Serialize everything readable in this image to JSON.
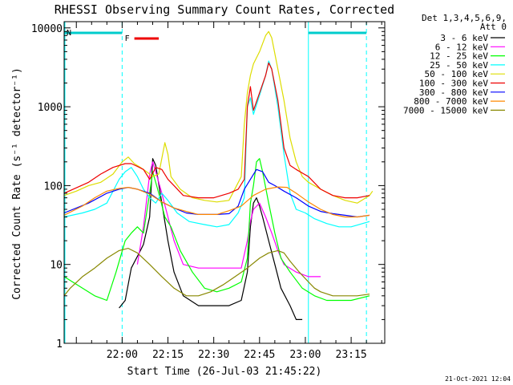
{
  "chart_data": {
    "type": "line",
    "title": "RHESSI Observing Summary Count Rates, Corrected",
    "xlabel": "Start Time (26-Jul-03 21:45:22)",
    "ylabel": "Corrected Count Rate (s⁻¹ detector⁻¹)",
    "yscale": "log",
    "ylim": [
      1,
      12000
    ],
    "xlim_minutes": [
      -4,
      101
    ],
    "y_ticks": [
      {
        "v": 1,
        "label": "1"
      },
      {
        "v": 10,
        "label": "10"
      },
      {
        "v": 100,
        "label": "100"
      },
      {
        "v": 1000,
        "label": "1000"
      },
      {
        "v": 10000,
        "label": "10000"
      }
    ],
    "x_ticks": [
      {
        "t": 15,
        "label": "22:00"
      },
      {
        "t": 30,
        "label": "22:15"
      },
      {
        "t": 45,
        "label": "22:30"
      },
      {
        "t": 60,
        "label": "22:45"
      },
      {
        "t": 75,
        "label": "23:00"
      },
      {
        "t": 90,
        "label": "23:15"
      }
    ],
    "legend_header": [
      "Det 1,3,4,5,6,9,",
      "Att 0"
    ],
    "series": [
      {
        "name": "3 - 6 keV",
        "color": "#000000",
        "points": [
          [
            -4,
            null
          ],
          [
            14,
            2.8
          ],
          [
            16,
            3.5
          ],
          [
            18,
            9
          ],
          [
            21,
            15
          ],
          [
            22,
            18
          ],
          [
            24,
            40
          ],
          [
            25,
            220
          ],
          [
            26,
            180
          ],
          [
            28,
            60
          ],
          [
            30,
            20
          ],
          [
            32,
            8
          ],
          [
            35,
            4
          ],
          [
            40,
            3
          ],
          [
            45,
            3
          ],
          [
            50,
            3
          ],
          [
            54,
            3.5
          ],
          [
            56,
            8
          ],
          [
            57,
            30
          ],
          [
            58,
            60
          ],
          [
            59,
            70
          ],
          [
            60,
            55
          ],
          [
            61,
            40
          ],
          [
            63,
            20
          ],
          [
            65,
            10
          ],
          [
            67,
            5
          ],
          [
            70,
            3
          ],
          [
            72,
            2
          ],
          [
            74,
            2
          ],
          [
            75,
            null
          ]
        ]
      },
      {
        "name": "6 - 12 keV",
        "color": "#ff00ff",
        "points": [
          [
            14,
            null
          ],
          [
            20,
            10
          ],
          [
            22,
            30
          ],
          [
            24,
            140
          ],
          [
            25,
            200
          ],
          [
            26,
            150
          ],
          [
            28,
            80
          ],
          [
            30,
            40
          ],
          [
            32,
            20
          ],
          [
            35,
            10
          ],
          [
            40,
            9
          ],
          [
            45,
            9
          ],
          [
            50,
            9
          ],
          [
            54,
            9
          ],
          [
            56,
            20
          ],
          [
            57,
            35
          ],
          [
            58,
            50
          ],
          [
            60,
            60
          ],
          [
            62,
            40
          ],
          [
            64,
            25
          ],
          [
            66,
            15
          ],
          [
            68,
            10
          ],
          [
            72,
            8
          ],
          [
            76,
            7
          ],
          [
            80,
            7
          ]
        ]
      },
      {
        "name": "12 - 25 keV",
        "color": "#00ff00",
        "points": [
          [
            -4,
            7
          ],
          [
            2,
            5
          ],
          [
            6,
            4
          ],
          [
            10,
            3.5
          ],
          [
            13,
            8
          ],
          [
            16,
            20
          ],
          [
            18,
            25
          ],
          [
            20,
            30
          ],
          [
            22,
            25
          ],
          [
            24,
            80
          ],
          [
            25,
            150
          ],
          [
            27,
            80
          ],
          [
            29,
            40
          ],
          [
            31,
            30
          ],
          [
            34,
            15
          ],
          [
            38,
            8
          ],
          [
            42,
            5
          ],
          [
            46,
            4.5
          ],
          [
            50,
            5
          ],
          [
            54,
            6
          ],
          [
            56,
            12
          ],
          [
            57,
            60
          ],
          [
            58,
            100
          ],
          [
            59,
            200
          ],
          [
            60,
            220
          ],
          [
            61,
            150
          ],
          [
            63,
            60
          ],
          [
            65,
            25
          ],
          [
            67,
            12
          ],
          [
            70,
            8
          ],
          [
            74,
            5
          ],
          [
            78,
            4
          ],
          [
            82,
            3.5
          ],
          [
            86,
            3.5
          ],
          [
            90,
            3.5
          ],
          [
            96,
            4
          ]
        ]
      },
      {
        "name": "25 - 50 keV",
        "color": "#00ffff",
        "points": [
          [
            -4,
            40
          ],
          [
            2,
            45
          ],
          [
            6,
            50
          ],
          [
            10,
            60
          ],
          [
            14,
            120
          ],
          [
            16,
            150
          ],
          [
            18,
            170
          ],
          [
            20,
            130
          ],
          [
            22,
            90
          ],
          [
            24,
            70
          ],
          [
            26,
            60
          ],
          [
            28,
            80
          ],
          [
            30,
            65
          ],
          [
            33,
            45
          ],
          [
            37,
            35
          ],
          [
            42,
            32
          ],
          [
            46,
            30
          ],
          [
            50,
            32
          ],
          [
            53,
            45
          ],
          [
            55,
            70
          ],
          [
            56,
            1000
          ],
          [
            57,
            1300
          ],
          [
            58,
            800
          ],
          [
            60,
            1400
          ],
          [
            62,
            2500
          ],
          [
            63,
            3800
          ],
          [
            64,
            3000
          ],
          [
            66,
            1000
          ],
          [
            68,
            250
          ],
          [
            70,
            80
          ],
          [
            72,
            50
          ],
          [
            75,
            45
          ],
          [
            78,
            38
          ],
          [
            82,
            33
          ],
          [
            86,
            30
          ],
          [
            90,
            30
          ],
          [
            96,
            35
          ]
        ]
      },
      {
        "name": "50 - 100 keV",
        "color": "#dddd00",
        "points": [
          [
            -4,
            75
          ],
          [
            0,
            85
          ],
          [
            4,
            100
          ],
          [
            8,
            110
          ],
          [
            12,
            140
          ],
          [
            15,
            200
          ],
          [
            17,
            230
          ],
          [
            19,
            190
          ],
          [
            21,
            170
          ],
          [
            23,
            150
          ],
          [
            25,
            130
          ],
          [
            27,
            140
          ],
          [
            29,
            350
          ],
          [
            30,
            250
          ],
          [
            31,
            130
          ],
          [
            34,
            90
          ],
          [
            38,
            70
          ],
          [
            42,
            65
          ],
          [
            46,
            62
          ],
          [
            50,
            65
          ],
          [
            54,
            130
          ],
          [
            55,
            600
          ],
          [
            56,
            1500
          ],
          [
            57,
            2500
          ],
          [
            58,
            3500
          ],
          [
            60,
            5000
          ],
          [
            62,
            8000
          ],
          [
            63,
            9000
          ],
          [
            64,
            7500
          ],
          [
            66,
            3000
          ],
          [
            68,
            1200
          ],
          [
            70,
            400
          ],
          [
            72,
            200
          ],
          [
            74,
            130
          ],
          [
            76,
            110
          ],
          [
            80,
            90
          ],
          [
            84,
            75
          ],
          [
            88,
            65
          ],
          [
            92,
            60
          ],
          [
            96,
            75
          ],
          [
            97,
            85
          ]
        ]
      },
      {
        "name": "100 - 300 keV",
        "color": "#ee0000",
        "points": [
          [
            -4,
            80
          ],
          [
            4,
            110
          ],
          [
            8,
            140
          ],
          [
            12,
            170
          ],
          [
            16,
            190
          ],
          [
            18,
            190
          ],
          [
            20,
            175
          ],
          [
            22,
            160
          ],
          [
            24,
            120
          ],
          [
            26,
            170
          ],
          [
            28,
            160
          ],
          [
            30,
            120
          ],
          [
            32,
            100
          ],
          [
            35,
            75
          ],
          [
            40,
            70
          ],
          [
            45,
            70
          ],
          [
            50,
            80
          ],
          [
            53,
            90
          ],
          [
            55,
            120
          ],
          [
            56,
            1000
          ],
          [
            57,
            1800
          ],
          [
            58,
            900
          ],
          [
            60,
            1500
          ],
          [
            62,
            2500
          ],
          [
            63,
            3600
          ],
          [
            64,
            3000
          ],
          [
            66,
            1200
          ],
          [
            68,
            300
          ],
          [
            70,
            180
          ],
          [
            72,
            160
          ],
          [
            76,
            130
          ],
          [
            80,
            90
          ],
          [
            84,
            75
          ],
          [
            88,
            70
          ],
          [
            92,
            70
          ],
          [
            96,
            75
          ]
        ]
      },
      {
        "name": "300 - 800 keV",
        "color": "#0000ff",
        "points": [
          [
            -4,
            45
          ],
          [
            4,
            60
          ],
          [
            10,
            80
          ],
          [
            14,
            90
          ],
          [
            17,
            95
          ],
          [
            20,
            90
          ],
          [
            24,
            80
          ],
          [
            28,
            62
          ],
          [
            32,
            52
          ],
          [
            36,
            45
          ],
          [
            40,
            43
          ],
          [
            46,
            43
          ],
          [
            50,
            44
          ],
          [
            53,
            55
          ],
          [
            55,
            90
          ],
          [
            57,
            120
          ],
          [
            59,
            160
          ],
          [
            61,
            150
          ],
          [
            63,
            110
          ],
          [
            65,
            100
          ],
          [
            68,
            85
          ],
          [
            72,
            70
          ],
          [
            76,
            55
          ],
          [
            80,
            47
          ],
          [
            84,
            44
          ],
          [
            88,
            42
          ],
          [
            92,
            40
          ],
          [
            96,
            42
          ]
        ]
      },
      {
        "name": "800 - 7000 keV",
        "color": "#ff8800",
        "points": [
          [
            -4,
            42
          ],
          [
            2,
            55
          ],
          [
            6,
            70
          ],
          [
            10,
            85
          ],
          [
            14,
            92
          ],
          [
            17,
            95
          ],
          [
            20,
            90
          ],
          [
            24,
            78
          ],
          [
            28,
            62
          ],
          [
            32,
            52
          ],
          [
            36,
            47
          ],
          [
            40,
            43
          ],
          [
            46,
            43
          ],
          [
            50,
            48
          ],
          [
            54,
            55
          ],
          [
            58,
            75
          ],
          [
            62,
            90
          ],
          [
            66,
            96
          ],
          [
            69,
            95
          ],
          [
            72,
            80
          ],
          [
            76,
            62
          ],
          [
            80,
            50
          ],
          [
            84,
            43
          ],
          [
            88,
            40
          ],
          [
            92,
            40
          ],
          [
            96,
            42
          ]
        ]
      },
      {
        "name": "7000 - 15000 keV",
        "color": "#888800",
        "points": [
          [
            -4,
            4
          ],
          [
            -2,
            5
          ],
          [
            2,
            7
          ],
          [
            6,
            9
          ],
          [
            10,
            12
          ],
          [
            14,
            15
          ],
          [
            17,
            16
          ],
          [
            20,
            14
          ],
          [
            24,
            10
          ],
          [
            28,
            7
          ],
          [
            32,
            5
          ],
          [
            36,
            4
          ],
          [
            40,
            4
          ],
          [
            44,
            4.5
          ],
          [
            48,
            5.5
          ],
          [
            52,
            7
          ],
          [
            56,
            9
          ],
          [
            60,
            12
          ],
          [
            63,
            14
          ],
          [
            66,
            15
          ],
          [
            68,
            14
          ],
          [
            70,
            11
          ],
          [
            73,
            8
          ],
          [
            76,
            6
          ],
          [
            78,
            5
          ],
          [
            80,
            4.5
          ],
          [
            84,
            4
          ],
          [
            88,
            4
          ],
          [
            92,
            4
          ],
          [
            96,
            4.2
          ]
        ]
      }
    ],
    "attenuator_lines": [
      {
        "label": "N",
        "color": "#00cccc",
        "t_start": -4,
        "t_end": 15
      },
      {
        "label": "",
        "color": "#00cccc",
        "t_start": 76,
        "t_end": 95
      },
      {
        "label": "F",
        "color": "#ee0000",
        "t_start": 19,
        "t_end": 27
      }
    ],
    "vertical_markers": [
      {
        "t": -4,
        "style": "solid",
        "color": "#00ffff"
      },
      {
        "t": 15,
        "style": "dashed",
        "color": "#00ffff"
      },
      {
        "t": 76,
        "style": "solid",
        "color": "#00ffff"
      },
      {
        "t": 95,
        "style": "dashed",
        "color": "#00ffff"
      }
    ],
    "footer_timestamp": "21-Oct-2021 12:04"
  }
}
